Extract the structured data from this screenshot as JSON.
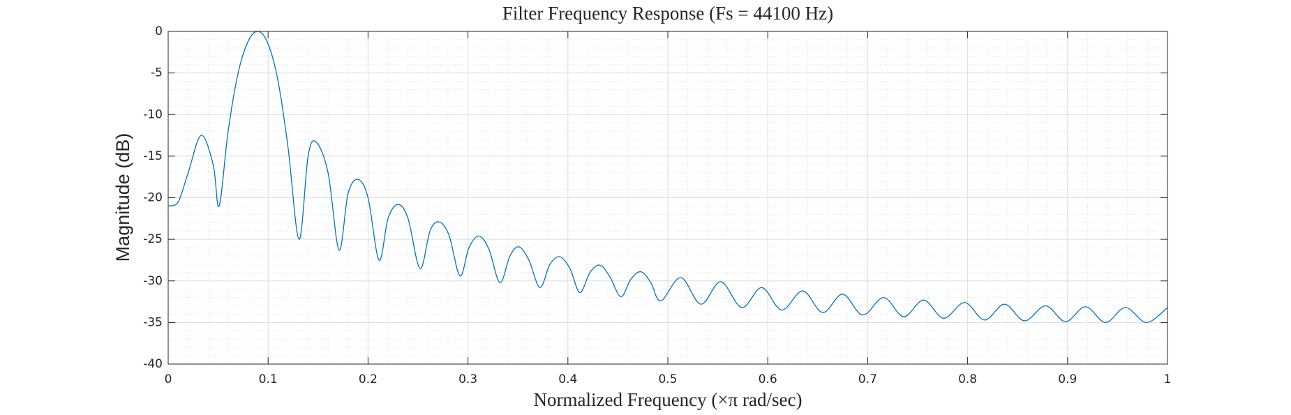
{
  "chart_data": {
    "type": "line",
    "title": "Filter Frequency Response (Fs = 44100 Hz)",
    "x_label": "Normalized Frequency (×π rad/sec)",
    "y_label": "Magnitude (dB)",
    "x": [
      0,
      0.01,
      0.02,
      0.033,
      0.045,
      0.051,
      0.06,
      0.07,
      0.08,
      0.09,
      0.1,
      0.11,
      0.12,
      0.131,
      0.14,
      0.148,
      0.16,
      0.171,
      0.18,
      0.19,
      0.2,
      0.211,
      0.22,
      0.23,
      0.24,
      0.252,
      0.262,
      0.271,
      0.281,
      0.292,
      0.301,
      0.311,
      0.321,
      0.332,
      0.342,
      0.351,
      0.361,
      0.372,
      0.382,
      0.392,
      0.402,
      0.412,
      0.422,
      0.432,
      0.442,
      0.453,
      0.463,
      0.473,
      0.483,
      0.493,
      0.513,
      0.533,
      0.553,
      0.574,
      0.594,
      0.614,
      0.635,
      0.655,
      0.675,
      0.695,
      0.716,
      0.736,
      0.756,
      0.776,
      0.797,
      0.817,
      0.837,
      0.857,
      0.878,
      0.898,
      0.918,
      0.938,
      0.958,
      0.979,
      1.0
    ],
    "series": [
      {
        "name": "Magnitude",
        "color": "#0072bd",
        "values": [
          -21,
          -20.5,
          -17,
          -12.5,
          -16,
          -21,
          -12,
          -5,
          -1.2,
          0,
          -1.5,
          -6,
          -14,
          -25,
          -15,
          -13.3,
          -17,
          -26.3,
          -19.5,
          -17.8,
          -20,
          -27.5,
          -22.5,
          -20.8,
          -22.5,
          -28.5,
          -24,
          -22.9,
          -24.5,
          -29.4,
          -26,
          -24.6,
          -26.2,
          -30.2,
          -27,
          -25.9,
          -27.5,
          -30.8,
          -28,
          -27.1,
          -28.5,
          -31.4,
          -29,
          -28.1,
          -29.5,
          -31.9,
          -29.8,
          -28.9,
          -30.2,
          -32.4,
          -29.6,
          -32.8,
          -30.1,
          -33.2,
          -30.8,
          -33.5,
          -31.2,
          -33.8,
          -31.6,
          -34.1,
          -32,
          -34.3,
          -32.3,
          -34.5,
          -32.6,
          -34.7,
          -32.8,
          -34.8,
          -33,
          -34.9,
          -33.1,
          -35,
          -33.2,
          -35,
          -33.2
        ]
      }
    ],
    "xlim": [
      0,
      1
    ],
    "xticks": [
      0,
      0.1,
      0.2,
      0.3,
      0.4,
      0.5,
      0.6,
      0.7,
      0.8,
      0.9,
      1
    ],
    "ylim": [
      -40,
      0
    ],
    "yticks": [
      -40,
      -35,
      -30,
      -25,
      -20,
      -15,
      -10,
      -5,
      0
    ],
    "grid": true,
    "minor_grid": true
  }
}
